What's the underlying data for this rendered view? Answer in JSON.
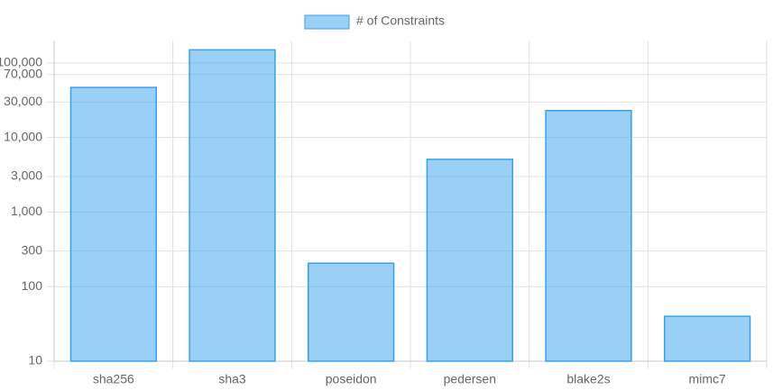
{
  "chart_data": {
    "type": "bar",
    "categories": [
      "sha256",
      "sha3",
      "poseidon",
      "pedersen",
      "blake2s",
      "mimc7"
    ],
    "series": [
      {
        "name": "# of Constraints",
        "color": "#36a2eb",
        "values": [
          47000,
          150000,
          206,
          5100,
          23000,
          40
        ]
      }
    ],
    "log_scale": true,
    "ylim": [
      10,
      200000
    ],
    "yticks": [
      10,
      100,
      300,
      {
        "value": 1000,
        "label": "1,000"
      },
      {
        "value": 3000,
        "label": "3,000"
      },
      {
        "value": 10000,
        "label": "10,000"
      },
      {
        "value": 30000,
        "label": "30,000"
      },
      {
        "value": 70000,
        "label": "70,000"
      },
      {
        "value": 100000,
        "label": "100,000"
      }
    ],
    "grid": true,
    "legend": "top"
  }
}
